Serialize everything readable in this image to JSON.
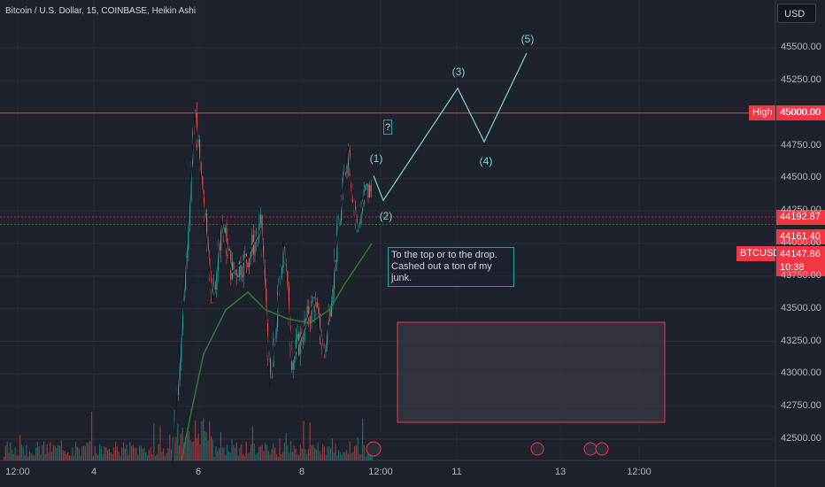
{
  "header": {
    "title": "Bitcoin / U.S. Dollar, 15, COINBASE, Heikin Ashi",
    "currency": "USD"
  },
  "price_tags": {
    "high_label": "High",
    "high_value": "45000.00",
    "p1": "44192.87",
    "p2": "44161.40",
    "symbol": "BTCUSD",
    "last": "44147.86",
    "countdown": "10:38"
  },
  "note": {
    "line1": "To the top or to the drop.",
    "line2": "Cashed out a ton of my junk."
  },
  "question_mark": "?",
  "wave_labels": [
    "(1)",
    "(2)",
    "(3)",
    "(4)",
    "(5)"
  ],
  "colors": {
    "background": "#1e222d",
    "up": "#26a69a",
    "down": "#ef5350",
    "high_line": "#f23645",
    "projection": "#7ed7c8"
  },
  "chart_data": {
    "type": "candlestick",
    "title": "Bitcoin / U.S. Dollar, 15, COINBASE, Heikin Ashi",
    "y_ticks": [
      "45500.00",
      "45250.00",
      "45000.00",
      "44750.00",
      "44500.00",
      "44250.00",
      "44000.00",
      "43750.00",
      "43500.00",
      "43250.00",
      "43000.00",
      "42750.00",
      "42500.00"
    ],
    "ylim": [
      42400,
      45800
    ],
    "x_ticks": [
      "12:00",
      "4",
      "6",
      "8",
      "12:00",
      "11",
      "13",
      "12:00"
    ],
    "zigzag": [
      {
        "x": 195,
        "y": 42300
      },
      {
        "x": 220,
        "y": 45000
      },
      {
        "x": 240,
        "y": 43550
      },
      {
        "x": 250,
        "y": 44180
      },
      {
        "x": 262,
        "y": 43780
      },
      {
        "x": 278,
        "y": 43880
      },
      {
        "x": 295,
        "y": 44120
      },
      {
        "x": 305,
        "y": 42880
      },
      {
        "x": 320,
        "y": 44030
      },
      {
        "x": 330,
        "y": 43100
      },
      {
        "x": 355,
        "y": 43560
      },
      {
        "x": 366,
        "y": 43150
      },
      {
        "x": 393,
        "y": 44750
      },
      {
        "x": 403,
        "y": 44110
      },
      {
        "x": 413,
        "y": 44400
      }
    ],
    "projection_path": [
      {
        "x": 422,
        "y": 44520
      },
      {
        "x": 433,
        "y": 44330
      },
      {
        "x": 517,
        "y": 45190
      },
      {
        "x": 547,
        "y": 44780
      },
      {
        "x": 595,
        "y": 45460
      }
    ],
    "high_line": 45000,
    "last_price": 44147.86
  }
}
